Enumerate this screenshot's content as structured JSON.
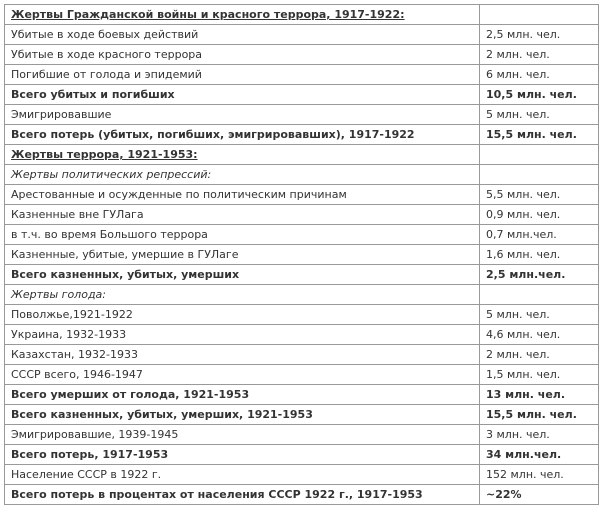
{
  "table": {
    "columns": [
      "label",
      "value"
    ],
    "rows": [
      {
        "label": "Жертвы Гражданской войны и красного террора, 1917-1922:",
        "value": "",
        "style": "section"
      },
      {
        "label": "Убитые в ходе боевых действий",
        "value": "2,5 млн. чел.",
        "style": "normal"
      },
      {
        "label": "Убитые в ходе красного террора",
        "value": "2 млн. чел.",
        "style": "normal"
      },
      {
        "label": "Погибшие от голода и эпидемий",
        "value": "6 млн. чел.",
        "style": "normal"
      },
      {
        "label": "Всего убитых и погибших",
        "value": "10,5 млн. чел.",
        "style": "bold"
      },
      {
        "label": "Эмигрировавшие",
        "value": "5 млн. чел.",
        "style": "normal"
      },
      {
        "label": "Всего потерь (убитых, погибших, эмигрировавших), 1917-1922",
        "value": "15,5 млн. чел.",
        "style": "bold"
      },
      {
        "label": "Жертвы террора, 1921-1953:",
        "value": "",
        "style": "section"
      },
      {
        "label": "Жертвы политических репрессий:",
        "value": "",
        "style": "italic"
      },
      {
        "label": "Арестованные и осужденные по политическим причинам",
        "value": "5,5 млн. чел.",
        "style": "normal"
      },
      {
        "label": "Казненные вне ГУЛага",
        "value": "0,9 млн. чел.",
        "style": "normal"
      },
      {
        "label": "в т.ч. во время Большого террора",
        "value": "0,7 млн.чел.",
        "style": "normal"
      },
      {
        "label": "Казненные, убитые, умершие в ГУЛаге",
        "value": "1,6 млн. чел.",
        "style": "normal"
      },
      {
        "label": "Всего казненных, убитых, умерших",
        "value": "2,5 млн.чел.",
        "style": "bold"
      },
      {
        "label": "Жертвы голода:",
        "value": "",
        "style": "italic"
      },
      {
        "label": "Поволжье,1921-1922",
        "value": "5 млн. чел.",
        "style": "normal"
      },
      {
        "label": "Украина, 1932-1933",
        "value": "4,6 млн. чел.",
        "style": "normal"
      },
      {
        "label": "Казахстан, 1932-1933",
        "value": "2 млн. чел.",
        "style": "normal"
      },
      {
        "label": "СССР всего, 1946-1947",
        "value": "1,5 млн. чел.",
        "style": "normal"
      },
      {
        "label": "Всего умерших от голода, 1921-1953",
        "value": "13 млн. чел.",
        "style": "bold"
      },
      {
        "label": "Всего казненных, убитых, умерших, 1921-1953",
        "value": "15,5 млн. чел.",
        "style": "bold"
      },
      {
        "label": "Эмигрировавшие, 1939-1945",
        "value": "3 млн. чел.",
        "style": "normal"
      },
      {
        "label": "Всего потерь, 1917-1953",
        "value": "34 млн.чел.",
        "style": "bold"
      },
      {
        "label": "Население СССР в 1922 г.",
        "value": "152 млн. чел.",
        "style": "normal"
      },
      {
        "label": "Всего потерь в процентах от населения СССР 1922 г., 1917-1953",
        "value": "~22%",
        "style": "bold"
      }
    ]
  }
}
